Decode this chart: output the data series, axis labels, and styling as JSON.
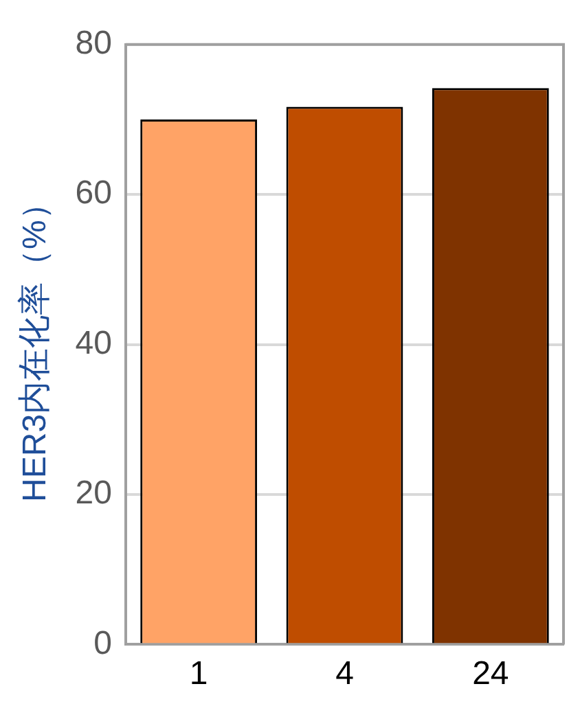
{
  "chart_data": {
    "type": "bar",
    "ylabel": "HER3内在化率（%）",
    "categories": [
      "1",
      "4",
      "24"
    ],
    "values": [
      70,
      71.7,
      74.2
    ],
    "colors": [
      "#ffa366",
      "#bf4d00",
      "#7f3300"
    ],
    "ylim": [
      0,
      80
    ],
    "yticks": [
      0,
      20,
      40,
      60,
      80
    ],
    "grid": "y",
    "legend": false
  }
}
